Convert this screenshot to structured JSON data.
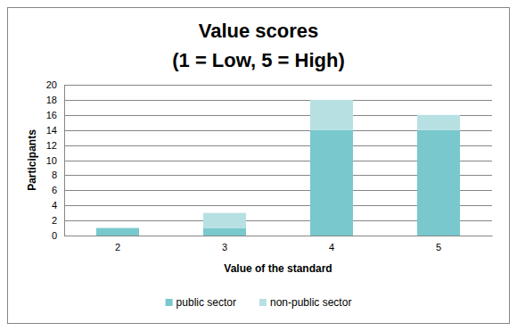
{
  "chart_data": {
    "type": "bar",
    "title": "Value scores",
    "subtitle": "(1 = Low, 5 = High)",
    "x_label": "Value of the standard",
    "y_label": "Participants",
    "categories": [
      "2",
      "3",
      "4",
      "5"
    ],
    "series": [
      {
        "name": "public sector",
        "color": "#78c8cd",
        "values": [
          1,
          1,
          14,
          14
        ]
      },
      {
        "name": "non-public sector",
        "color": "#b7e0e3",
        "values": [
          0,
          2,
          4,
          2
        ]
      }
    ],
    "stacked": true,
    "grid": true,
    "legend": "bottom",
    "ylim": [
      0,
      20
    ],
    "yticks": [
      0,
      2,
      4,
      6,
      8,
      10,
      12,
      14,
      16,
      18,
      20
    ]
  }
}
